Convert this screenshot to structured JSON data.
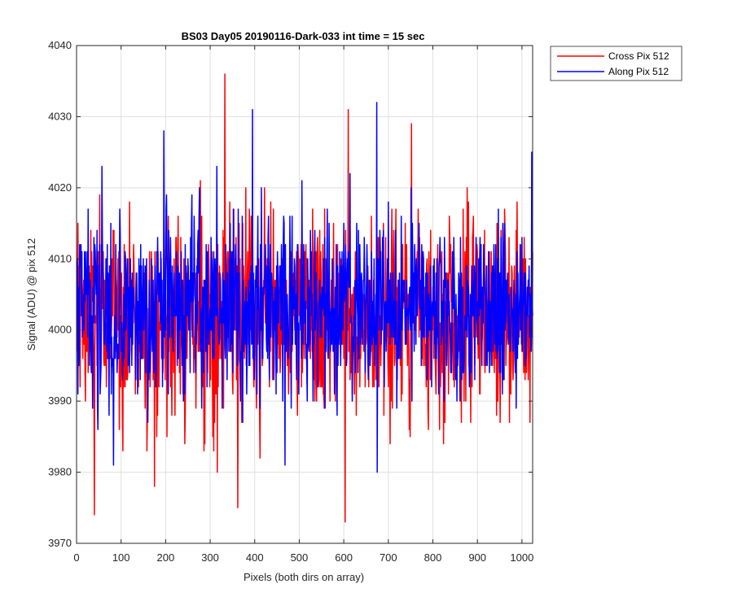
{
  "chart_data": {
    "type": "line",
    "title": "BS03 Day05 20190116-Dark-033 int time = 15 sec",
    "xlabel": "Pixels (both dirs on array)",
    "ylabel": "Signal (ADU) @ pix 512",
    "xlim": [
      0,
      1024
    ],
    "ylim": [
      3970,
      4040
    ],
    "xticks": [
      0,
      100,
      200,
      300,
      400,
      500,
      600,
      700,
      800,
      900,
      1000
    ],
    "yticks": [
      3970,
      3980,
      3990,
      4000,
      4010,
      4020,
      4030,
      4040
    ],
    "grid": true,
    "legend_position": "outside-top-right",
    "series": [
      {
        "name": "Cross Pix 512",
        "color": "#ff0000",
        "x_start": 1,
        "x_step": 1,
        "n_points": 1024,
        "mean": 4002,
        "spread": 7,
        "min": 3973,
        "max": 4036,
        "extremes": [
          [
            40,
            3974
          ],
          [
            175,
            3978
          ],
          [
            333,
            4036
          ],
          [
            362,
            3975
          ],
          [
            603,
            3973
          ],
          [
            610,
            4031
          ],
          [
            752,
            4029
          ]
        ]
      },
      {
        "name": "Along Pix 512",
        "color": "#0000ff",
        "x_start": 1,
        "x_step": 1,
        "n_points": 1024,
        "mean": 4003,
        "spread": 6.5,
        "min": 3980,
        "max": 4032,
        "extremes": [
          [
            83,
            3981
          ],
          [
            196,
            4028
          ],
          [
            395,
            4031
          ],
          [
            468,
            3981
          ],
          [
            674,
            4032
          ],
          [
            675,
            3980
          ],
          [
            1022,
            4025
          ]
        ]
      }
    ]
  }
}
